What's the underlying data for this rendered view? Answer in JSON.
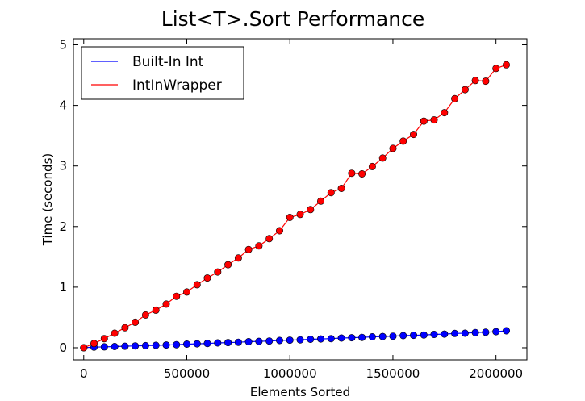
{
  "chart_data": {
    "type": "line",
    "title": "List<T>.Sort Performance",
    "xlabel": "Elements Sorted",
    "ylabel": "Time (seconds)",
    "xlim": [
      -50000,
      2150000
    ],
    "ylim": [
      -0.2,
      5.1
    ],
    "xticks": [
      0,
      500000,
      1000000,
      1500000,
      2000000
    ],
    "xtick_labels": [
      "0",
      "500000",
      "1000000",
      "1500000",
      "2000000"
    ],
    "yticks": [
      0,
      1,
      2,
      3,
      4,
      5
    ],
    "ytick_labels": [
      "0",
      "1",
      "2",
      "3",
      "4",
      "5"
    ],
    "grid": false,
    "legend_position": "top-left",
    "x": [
      0,
      50000,
      100000,
      150000,
      200000,
      250000,
      300000,
      350000,
      400000,
      450000,
      500000,
      550000,
      600000,
      650000,
      700000,
      750000,
      800000,
      850000,
      900000,
      950000,
      1000000,
      1050000,
      1100000,
      1150000,
      1200000,
      1250000,
      1300000,
      1350000,
      1400000,
      1450000,
      1500000,
      1550000,
      1600000,
      1650000,
      1700000,
      1750000,
      1800000,
      1850000,
      1900000,
      1950000,
      2000000,
      2050000
    ],
    "series": [
      {
        "name": "Built-In Int",
        "color": "#0000ff",
        "values": [
          0.0,
          0.01,
          0.015,
          0.02,
          0.025,
          0.03,
          0.035,
          0.04,
          0.045,
          0.05,
          0.06,
          0.065,
          0.07,
          0.08,
          0.085,
          0.09,
          0.1,
          0.105,
          0.11,
          0.12,
          0.125,
          0.13,
          0.14,
          0.145,
          0.15,
          0.16,
          0.165,
          0.17,
          0.18,
          0.185,
          0.19,
          0.2,
          0.205,
          0.21,
          0.22,
          0.225,
          0.235,
          0.24,
          0.25,
          0.255,
          0.265,
          0.28
        ]
      },
      {
        "name": "IntInWrapper",
        "color": "#ff0000",
        "values": [
          0.0,
          0.07,
          0.15,
          0.24,
          0.33,
          0.42,
          0.54,
          0.62,
          0.72,
          0.85,
          0.92,
          1.04,
          1.15,
          1.25,
          1.37,
          1.48,
          1.62,
          1.68,
          1.8,
          1.93,
          2.15,
          2.2,
          2.28,
          2.42,
          2.56,
          2.63,
          2.88,
          2.87,
          2.99,
          3.13,
          3.29,
          3.41,
          3.52,
          3.74,
          3.76,
          3.88,
          4.11,
          4.26,
          4.41,
          4.4,
          4.61,
          4.67
        ]
      }
    ]
  }
}
